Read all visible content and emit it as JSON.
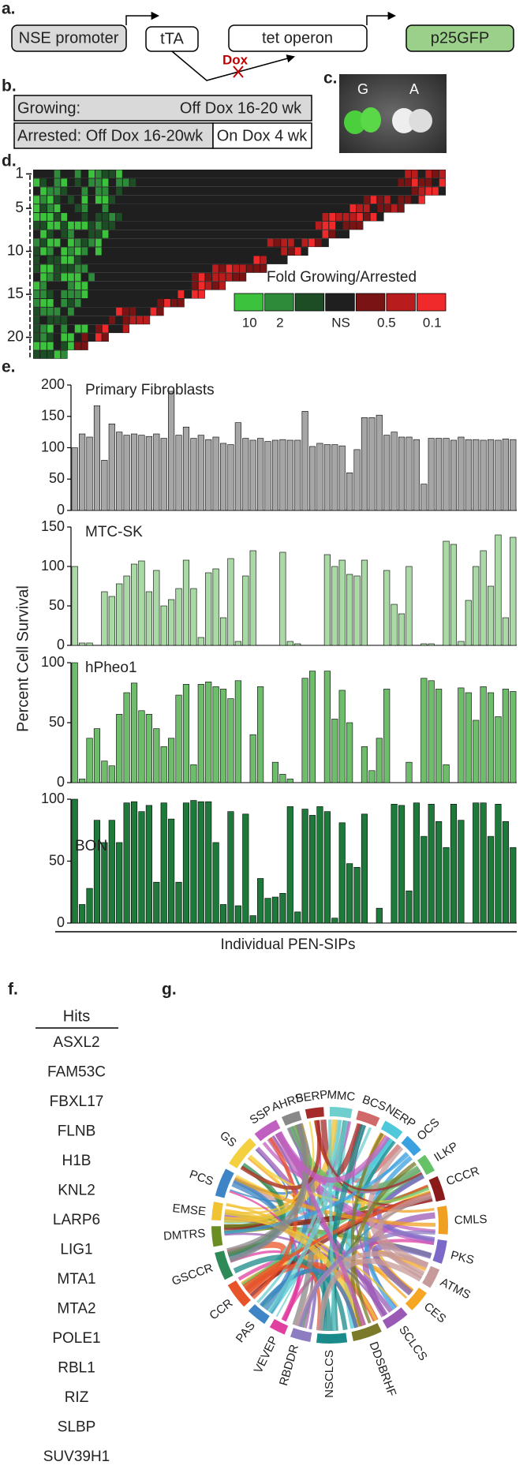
{
  "panel_labels": [
    "a.",
    "b.",
    "c.",
    "d.",
    "e.",
    "f.",
    "g."
  ],
  "diagram": {
    "promoter": "NSE promoter",
    "transactivator": "tTA",
    "operon": "tet operon",
    "transgene": "p25GFP",
    "drug": "Dox"
  },
  "table": {
    "rows": [
      [
        "Growing:",
        "Off Dox 16-20 wk"
      ],
      [
        "Arrested: Off Dox 16-20wk",
        "On Dox 4 wk"
      ]
    ]
  },
  "image": {
    "labels": [
      "G",
      "A"
    ]
  },
  "heatmap": {
    "yticks": [
      1,
      5,
      10,
      15,
      20
    ],
    "legend": {
      "title": "Fold Growing/Arrested",
      "colors": [
        "#3cc23c",
        "#2e8b3a",
        "#1d4d24",
        "#1f1f1f",
        "#7a1414",
        "#b81c1c",
        "#f02a2a"
      ],
      "labels": [
        "10",
        "2",
        "NS",
        "0.5",
        "0.1"
      ]
    }
  },
  "chart_data": [
    {
      "type": "bar",
      "title": "Primary Fibroblasts",
      "color": "#a6a6a6",
      "ylim": [
        0,
        200
      ],
      "yticks": [
        0,
        50,
        100,
        150,
        200
      ],
      "values": [
        100,
        122,
        117,
        167,
        80,
        138,
        125,
        120,
        122,
        120,
        118,
        122,
        115,
        190,
        120,
        133,
        115,
        120,
        113,
        117,
        107,
        105,
        140,
        115,
        112,
        115,
        110,
        112,
        113,
        112,
        112,
        158,
        102,
        107,
        105,
        105,
        103,
        60,
        97,
        148,
        148,
        152,
        120,
        125,
        117,
        117,
        113,
        42,
        115,
        115,
        115,
        112,
        117,
        113,
        113,
        112,
        113,
        112,
        114,
        113
      ]
    },
    {
      "type": "bar",
      "title": "MTC-SK",
      "color": "#a9d9a4",
      "ylim": [
        0,
        150
      ],
      "yticks": [
        0,
        50,
        100,
        150
      ],
      "values": [
        100,
        3,
        3,
        0,
        68,
        62,
        78,
        88,
        103,
        107,
        68,
        95,
        50,
        58,
        72,
        108,
        72,
        10,
        92,
        97,
        35,
        110,
        5,
        88,
        120,
        0,
        0,
        0,
        118,
        5,
        2,
        0,
        0,
        0,
        115,
        100,
        108,
        90,
        88,
        108,
        0,
        0,
        95,
        52,
        40,
        100,
        0,
        2,
        2,
        0,
        132,
        128,
        5,
        57,
        100,
        120,
        75,
        140,
        35,
        137
      ]
    },
    {
      "type": "bar",
      "title": "hPheo1",
      "color": "#6dbd6b",
      "ylim": [
        0,
        100
      ],
      "yticks": [
        0,
        50,
        100
      ],
      "values": [
        100,
        3,
        37,
        45,
        18,
        14,
        57,
        75,
        83,
        60,
        57,
        45,
        30,
        37,
        73,
        82,
        15,
        82,
        84,
        80,
        78,
        70,
        85,
        0,
        40,
        80,
        0,
        17,
        7,
        3,
        0,
        87,
        93,
        0,
        93,
        53,
        77,
        50,
        0,
        30,
        10,
        37,
        78,
        0,
        0,
        17,
        0,
        87,
        85,
        78,
        15,
        0,
        79,
        75,
        52,
        80,
        75,
        55,
        78,
        76
      ]
    },
    {
      "type": "bar",
      "title": "BON",
      "color": "#1e7a3a",
      "ylim": [
        0,
        100
      ],
      "yticks": [
        0,
        50,
        100
      ],
      "values": [
        100,
        15,
        28,
        83,
        65,
        83,
        65,
        97,
        98,
        90,
        95,
        33,
        97,
        84,
        33,
        97,
        99,
        98,
        98,
        65,
        15,
        90,
        14,
        88,
        6,
        36,
        20,
        21,
        24,
        94,
        9,
        92,
        87,
        94,
        90,
        4,
        81,
        48,
        45,
        88,
        0,
        12,
        0,
        96,
        95,
        26,
        97,
        70,
        96,
        82,
        61,
        96,
        83,
        0,
        97,
        97,
        70,
        96,
        82,
        61
      ]
    }
  ],
  "panel_e": {
    "y_label": "Percent Cell Survival",
    "x_label": "Individual PEN-SIPs"
  },
  "hits": {
    "header": "Hits",
    "items": [
      "ASXL2",
      "FAM53C",
      "FBXL17",
      "FLNB",
      "H1B",
      "KNL2",
      "LARP6",
      "LIG1",
      "MTA1",
      "MTA2",
      "POLE1",
      "RBL1",
      "RIZ",
      "SLBP",
      "SUV39H1"
    ]
  },
  "chord": {
    "labels": [
      "MMC",
      "BCS",
      "NERP",
      "OCS",
      "ILKP",
      "CCCR",
      "CMLS",
      "PKS",
      "ATMS",
      "CES",
      "SCLCS",
      "DDSBRHF",
      "NSCLCS",
      "RBDDR",
      "VEVEP",
      "PAS",
      "CCR",
      "GSCCR",
      "DMTRS",
      "EMSE",
      "PCS",
      "GS",
      "SSP",
      "AHRS",
      "BERP"
    ],
    "colors": [
      "#6fcfcf",
      "#d06a6a",
      "#4fc9d9",
      "#3aa0e0",
      "#66c266",
      "#8b1a1a",
      "#f0a020",
      "#7b68c8",
      "#c79a9a",
      "#f5a623",
      "#9b59b6",
      "#7a7a2a",
      "#1a8a8a",
      "#8e7cc3",
      "#e040a0",
      "#3d85c6",
      "#e8542a",
      "#2e8b57",
      "#6b8e23",
      "#f1c232",
      "#3d85c6",
      "#f4d03f",
      "#c060c0",
      "#888888",
      "#a52a2a"
    ]
  }
}
